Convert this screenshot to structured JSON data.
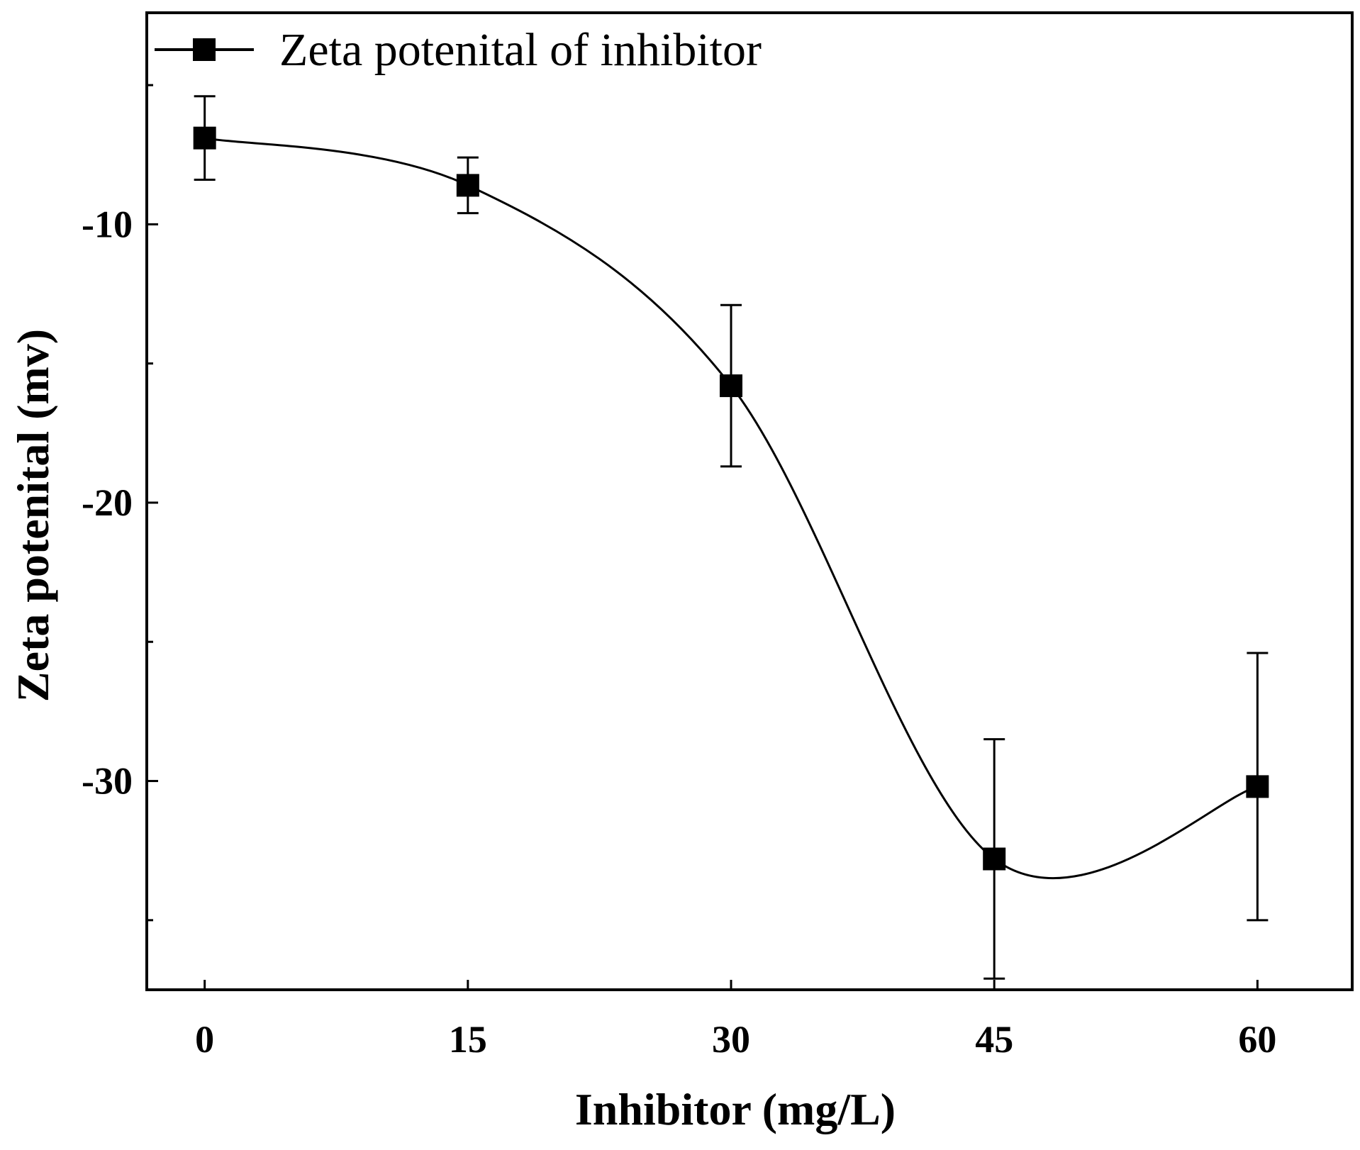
{
  "chart_data": {
    "type": "line",
    "title": "",
    "xlabel": "Inhibitor (mg/L)",
    "ylabel": "Zeta potenital (mv)",
    "xlim": [
      -3.3,
      65.4
    ],
    "ylim": [
      -37.5,
      -2.4
    ],
    "x_ticks": [
      0,
      15,
      30,
      45,
      60
    ],
    "y_ticks": [
      -10,
      -20,
      -30
    ],
    "grid": false,
    "legend_position": "top-left",
    "series": [
      {
        "name": "Zeta potenital of inhibitor",
        "color": "#000000",
        "marker": "square",
        "smooth": true,
        "x": [
          0,
          15,
          30,
          45,
          60
        ],
        "y": [
          -6.9,
          -8.6,
          -15.8,
          -32.8,
          -30.2
        ],
        "error": [
          1.5,
          1.0,
          2.9,
          4.3,
          4.8
        ]
      }
    ]
  }
}
